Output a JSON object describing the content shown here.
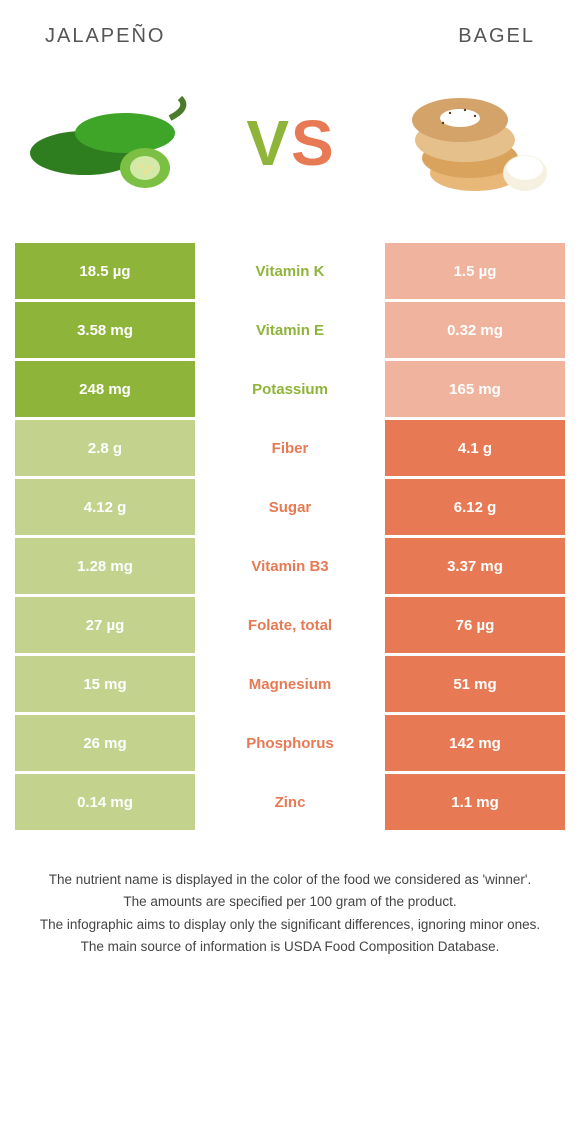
{
  "left_title": "JALAPEÑO",
  "right_title": "BAGEL",
  "colors": {
    "green_win": "#8fb43a",
    "green_lose": "#c3d38e",
    "orange_win": "#e77a54",
    "orange_lose": "#f0b39d",
    "text": "#333333"
  },
  "vs": {
    "v": "V",
    "s": "S"
  },
  "rows": [
    {
      "left": "18.5 µg",
      "label": "Vitamin K",
      "right": "1.5 µg",
      "winner": "left"
    },
    {
      "left": "3.58 mg",
      "label": "Vitamin E",
      "right": "0.32 mg",
      "winner": "left"
    },
    {
      "left": "248 mg",
      "label": "Potassium",
      "right": "165 mg",
      "winner": "left"
    },
    {
      "left": "2.8 g",
      "label": "Fiber",
      "right": "4.1 g",
      "winner": "right"
    },
    {
      "left": "4.12 g",
      "label": "Sugar",
      "right": "6.12 g",
      "winner": "right"
    },
    {
      "left": "1.28 mg",
      "label": "Vitamin B3",
      "right": "3.37 mg",
      "winner": "right"
    },
    {
      "left": "27 µg",
      "label": "Folate, total",
      "right": "76 µg",
      "winner": "right"
    },
    {
      "left": "15 mg",
      "label": "Magnesium",
      "right": "51 mg",
      "winner": "right"
    },
    {
      "left": "26 mg",
      "label": "Phosphorus",
      "right": "142 mg",
      "winner": "right"
    },
    {
      "left": "0.14 mg",
      "label": "Zinc",
      "right": "1.1 mg",
      "winner": "right"
    }
  ],
  "footer": [
    "The nutrient name is displayed in the color of the food we considered as 'winner'.",
    "The amounts are specified per 100 gram of the product.",
    "The infographic aims to display only the significant differences, ignoring minor ones.",
    "The main source of information is USDA Food Composition Database."
  ]
}
